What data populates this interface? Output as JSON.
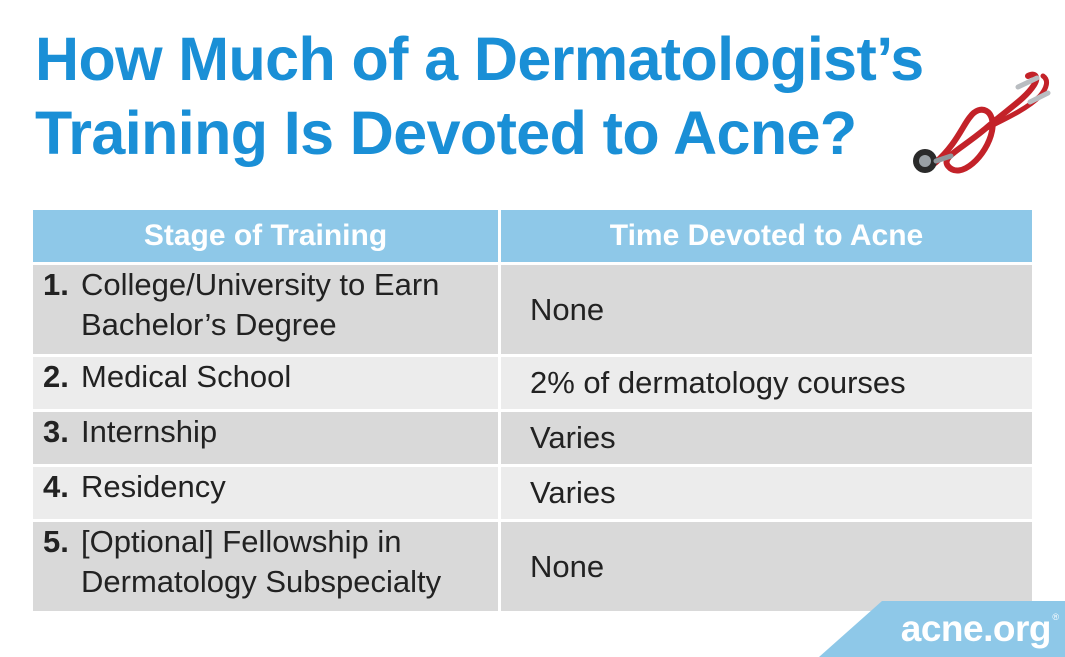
{
  "title": {
    "line1": "How Much of a Dermatologist’s",
    "line2": "Training Is Devoted to Acne?"
  },
  "colors": {
    "title": "#1a8fd6",
    "header_bg": "#8ec8e8",
    "row_dark": "#d9d9d9",
    "row_light": "#ececec",
    "brand_bg": "#8ec8e8"
  },
  "table": {
    "headers": [
      "Stage of Training",
      "Time Devoted to Acne"
    ],
    "rows": [
      {
        "num": "1.",
        "stage": "College/University to Earn\nBachelor’s Degree",
        "time": "None"
      },
      {
        "num": "2.",
        "stage": "Medical School",
        "time": "2% of dermatology courses"
      },
      {
        "num": "3.",
        "stage": "Internship",
        "time": "Varies"
      },
      {
        "num": "4.",
        "stage": "Residency",
        "time": "Varies"
      },
      {
        "num": "5.",
        "stage": "[Optional] Fellowship in\nDermatology Subspecialty",
        "time": "None"
      }
    ]
  },
  "brand": {
    "name": "acne.org",
    "registered": "®"
  },
  "icons": {
    "illustration": "stethoscope-icon"
  }
}
